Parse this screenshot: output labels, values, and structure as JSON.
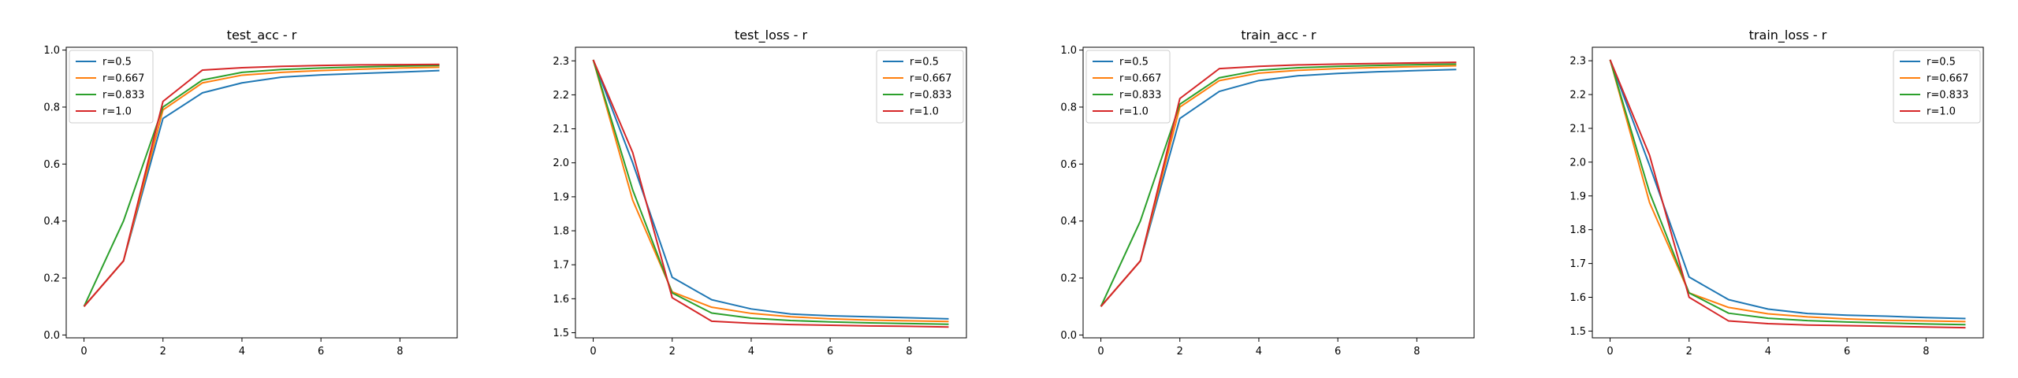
{
  "figure": {
    "colors": [
      "#1f77b4",
      "#ff7f0e",
      "#2ca02c",
      "#d62728"
    ]
  },
  "chart_data": [
    {
      "type": "line",
      "title": "test_acc - r",
      "xlabel": "",
      "ylabel": "",
      "x": [
        0,
        1,
        2,
        3,
        4,
        5,
        6,
        7,
        8,
        9
      ],
      "xlim": [
        -0.45,
        9.45
      ],
      "ylim": [
        -0.01,
        1.01
      ],
      "xticks": [
        0,
        2,
        4,
        6,
        8
      ],
      "xtick_labels": [
        "0",
        "2",
        "4",
        "6",
        "8"
      ],
      "yticks": [
        0.0,
        0.2,
        0.4,
        0.6,
        0.8,
        1.0
      ],
      "ytick_labels": [
        "0.0",
        "0.2",
        "0.4",
        "0.6",
        "0.8",
        "1.0"
      ],
      "grid": false,
      "legend_position": "top-left",
      "series": [
        {
          "name": "r=0.5",
          "color": "#1f77b4",
          "values": [
            0.1,
            0.26,
            0.76,
            0.85,
            0.885,
            0.905,
            0.913,
            0.918,
            0.923,
            0.928
          ]
        },
        {
          "name": "r=0.667",
          "color": "#ff7f0e",
          "values": [
            0.1,
            0.26,
            0.79,
            0.885,
            0.912,
            0.922,
            0.928,
            0.933,
            0.937,
            0.94
          ]
        },
        {
          "name": "r=0.833",
          "color": "#2ca02c",
          "values": [
            0.1,
            0.4,
            0.8,
            0.895,
            0.922,
            0.932,
            0.937,
            0.941,
            0.944,
            0.946
          ]
        },
        {
          "name": "r=1.0",
          "color": "#d62728",
          "values": [
            0.1,
            0.26,
            0.82,
            0.93,
            0.938,
            0.943,
            0.946,
            0.948,
            0.949,
            0.95
          ]
        }
      ]
    },
    {
      "type": "line",
      "title": "test_loss - r",
      "xlabel": "",
      "ylabel": "",
      "x": [
        0,
        1,
        2,
        3,
        4,
        5,
        6,
        7,
        8,
        9
      ],
      "xlim": [
        -0.45,
        9.45
      ],
      "ylim": [
        1.485,
        2.34
      ],
      "xticks": [
        0,
        2,
        4,
        6,
        8
      ],
      "xtick_labels": [
        "0",
        "2",
        "4",
        "6",
        "8"
      ],
      "yticks": [
        1.5,
        1.6,
        1.7,
        1.8,
        1.9,
        2.0,
        2.1,
        2.2,
        2.3
      ],
      "ytick_labels": [
        "1.5",
        "1.6",
        "1.7",
        "1.8",
        "1.9",
        "2.0",
        "2.1",
        "2.2",
        "2.3"
      ],
      "grid": false,
      "legend_position": "top-right",
      "series": [
        {
          "name": "r=0.5",
          "color": "#1f77b4",
          "values": [
            2.303,
            2.0,
            1.663,
            1.597,
            1.57,
            1.555,
            1.55,
            1.547,
            1.544,
            1.541
          ]
        },
        {
          "name": "r=0.667",
          "color": "#ff7f0e",
          "values": [
            2.303,
            1.89,
            1.62,
            1.575,
            1.557,
            1.547,
            1.541,
            1.537,
            1.535,
            1.533
          ]
        },
        {
          "name": "r=0.833",
          "color": "#2ca02c",
          "values": [
            2.303,
            1.92,
            1.617,
            1.558,
            1.543,
            1.536,
            1.532,
            1.529,
            1.527,
            1.525
          ]
        },
        {
          "name": "r=1.0",
          "color": "#d62728",
          "values": [
            2.303,
            2.03,
            1.603,
            1.534,
            1.528,
            1.524,
            1.522,
            1.52,
            1.519,
            1.517
          ]
        }
      ]
    },
    {
      "type": "line",
      "title": "train_acc - r",
      "xlabel": "",
      "ylabel": "",
      "x": [
        0,
        1,
        2,
        3,
        4,
        5,
        6,
        7,
        8,
        9
      ],
      "xlim": [
        -0.45,
        9.45
      ],
      "ylim": [
        -0.01,
        1.01
      ],
      "xticks": [
        0,
        2,
        4,
        6,
        8
      ],
      "xtick_labels": [
        "0",
        "2",
        "4",
        "6",
        "8"
      ],
      "yticks": [
        0.0,
        0.2,
        0.4,
        0.6,
        0.8,
        1.0
      ],
      "ytick_labels": [
        "0.0",
        "0.2",
        "0.4",
        "0.6",
        "0.8",
        "1.0"
      ],
      "grid": false,
      "legend_position": "top-left",
      "series": [
        {
          "name": "r=0.5",
          "color": "#1f77b4",
          "values": [
            0.1,
            0.26,
            0.76,
            0.855,
            0.893,
            0.91,
            0.918,
            0.924,
            0.928,
            0.932
          ]
        },
        {
          "name": "r=0.667",
          "color": "#ff7f0e",
          "values": [
            0.1,
            0.26,
            0.8,
            0.893,
            0.919,
            0.929,
            0.935,
            0.939,
            0.942,
            0.945
          ]
        },
        {
          "name": "r=0.833",
          "color": "#2ca02c",
          "values": [
            0.1,
            0.4,
            0.81,
            0.903,
            0.929,
            0.938,
            0.943,
            0.946,
            0.949,
            0.951
          ]
        },
        {
          "name": "r=1.0",
          "color": "#d62728",
          "values": [
            0.1,
            0.26,
            0.83,
            0.935,
            0.943,
            0.948,
            0.951,
            0.953,
            0.955,
            0.957
          ]
        }
      ]
    },
    {
      "type": "line",
      "title": "train_loss - r",
      "xlabel": "",
      "ylabel": "",
      "x": [
        0,
        1,
        2,
        3,
        4,
        5,
        6,
        7,
        8,
        9
      ],
      "xlim": [
        -0.45,
        9.45
      ],
      "ylim": [
        1.48,
        2.34
      ],
      "xticks": [
        0,
        2,
        4,
        6,
        8
      ],
      "xtick_labels": [
        "0",
        "2",
        "4",
        "6",
        "8"
      ],
      "yticks": [
        1.5,
        1.6,
        1.7,
        1.8,
        1.9,
        2.0,
        2.1,
        2.2,
        2.3
      ],
      "ytick_labels": [
        "1.5",
        "1.6",
        "1.7",
        "1.8",
        "1.9",
        "2.0",
        "2.1",
        "2.2",
        "2.3"
      ],
      "grid": false,
      "legend_position": "top-right",
      "series": [
        {
          "name": "r=0.5",
          "color": "#1f77b4",
          "values": [
            2.303,
            1.99,
            1.66,
            1.593,
            1.565,
            1.552,
            1.547,
            1.544,
            1.54,
            1.537
          ]
        },
        {
          "name": "r=0.667",
          "color": "#ff7f0e",
          "values": [
            2.303,
            1.88,
            1.613,
            1.57,
            1.551,
            1.542,
            1.536,
            1.532,
            1.53,
            1.528
          ]
        },
        {
          "name": "r=0.833",
          "color": "#2ca02c",
          "values": [
            2.303,
            1.91,
            1.613,
            1.553,
            1.538,
            1.531,
            1.527,
            1.524,
            1.521,
            1.519
          ]
        },
        {
          "name": "r=1.0",
          "color": "#d62728",
          "values": [
            2.303,
            2.02,
            1.6,
            1.53,
            1.522,
            1.518,
            1.516,
            1.514,
            1.512,
            1.51
          ]
        }
      ]
    }
  ]
}
